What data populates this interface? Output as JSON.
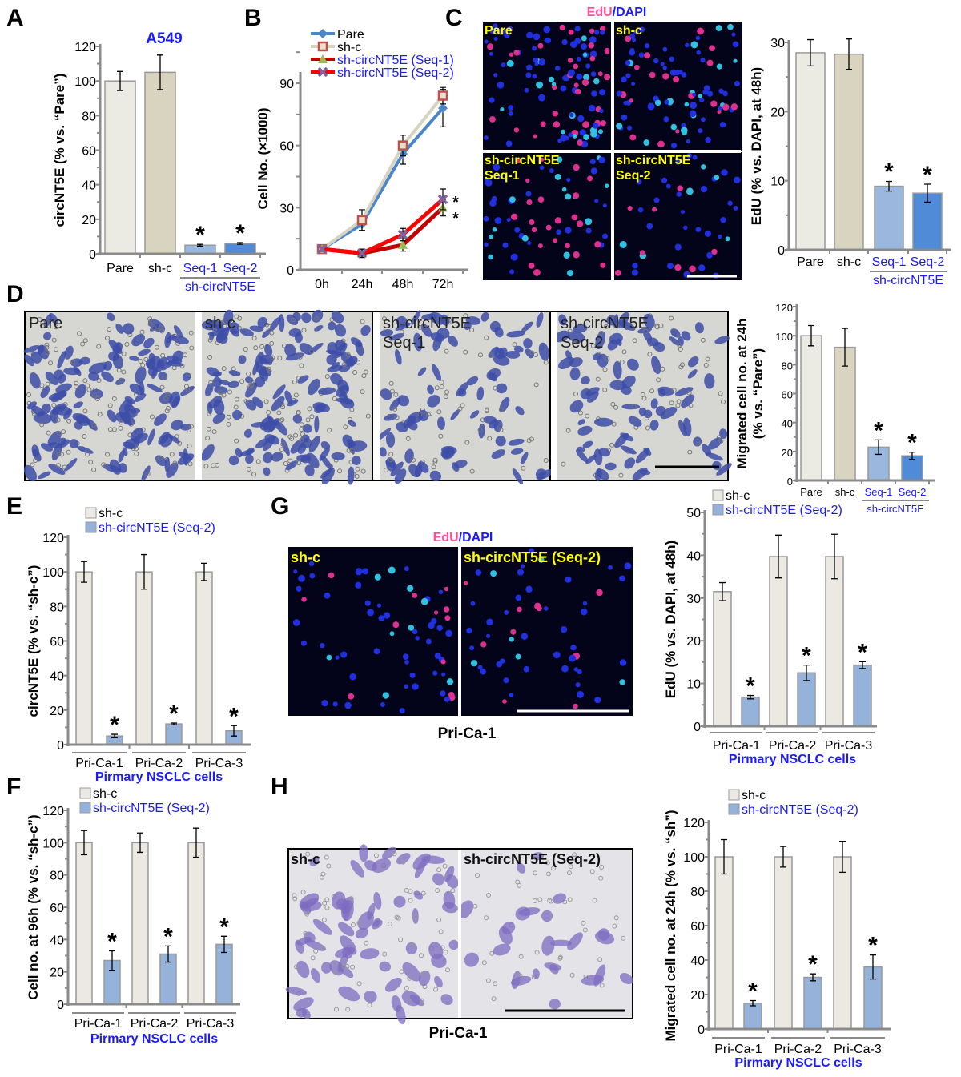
{
  "panel_letters": [
    "A",
    "B",
    "C",
    "D",
    "E",
    "F",
    "G",
    "H"
  ],
  "colors": {
    "pare": "#ecebe3",
    "shc_A": "#d9d4bf",
    "seq1": "#9ab7de",
    "seq2": "#4f8bd6",
    "shc": "#ebe9e1",
    "seq2_primary": "#95b3da",
    "label_blue": "#1a1aff",
    "edu_pink": "#ff4f9a",
    "dapi_blue": "#1a1aff",
    "yellow": "#ffff00"
  },
  "images": {
    "C": {
      "title_edu": "EdU",
      "title_sep": "/",
      "title_dapi": "DAPI",
      "labels": [
        "Pare",
        "sh-c",
        "sh-circNT5E\nSeq-1",
        "sh-circNT5E\nSeq-2"
      ],
      "has_scale_bar": true
    },
    "D": {
      "labels": [
        "Pare",
        "sh-c",
        "sh-circNT5E\nSeq-1",
        "sh-circNT5E\nSeq-2"
      ],
      "has_scale_bar": true
    },
    "G": {
      "title_edu": "EdU",
      "title_sep": "/",
      "title_dapi": "DAPI",
      "labels": [
        "sh-c",
        "sh-circNT5E (Seq-2)"
      ],
      "caption": "Pri-Ca-1",
      "has_scale_bar": true
    },
    "H": {
      "labels": [
        "sh-c",
        "sh-circNT5E (Seq-2)"
      ],
      "caption": "Pri-Ca-1",
      "has_scale_bar": true
    }
  },
  "chart_data": [
    {
      "id": "A",
      "type": "bar",
      "title": "A549",
      "ylabel": "circNT5E (% vs. “Pare”)",
      "ylim": [
        0,
        120
      ],
      "ytick_step": 20,
      "categories": [
        "Pare",
        "sh-c",
        "Seq-1",
        "Seq-2"
      ],
      "category_colors": [
        "#000",
        "#000",
        "#1a1aff",
        "#1a1aff"
      ],
      "group_label": "sh-circNT5E",
      "group_span": [
        "Seq-1",
        "Seq-2"
      ],
      "series": [
        {
          "values": [
            100,
            105,
            5,
            6
          ],
          "errors": [
            5.5,
            10,
            0.5,
            0.5
          ],
          "colors": [
            "#ecebe3",
            "#d9d4bf",
            "#9ab7de",
            "#4f8bd6"
          ]
        }
      ],
      "significant": [
        false,
        false,
        true,
        true
      ]
    },
    {
      "id": "B",
      "type": "line",
      "ylabel": "Cell No. (×1000)",
      "ylim": [
        0,
        90
      ],
      "yticks": [
        0,
        30,
        60,
        90
      ],
      "x": [
        "0h",
        "24h",
        "48h",
        "72h"
      ],
      "series": [
        {
          "name": "Pare",
          "values": [
            10,
            22,
            56,
            78
          ],
          "errors": [
            1,
            3,
            5,
            9
          ],
          "line_color": "#4a86c8",
          "marker": "diamond",
          "marker_color": "#4a86c8"
        },
        {
          "name": "sh-c",
          "values": [
            10,
            24,
            60,
            84
          ],
          "errors": [
            1,
            5,
            5,
            4
          ],
          "line_color": "#d8d3c0",
          "marker": "square",
          "marker_color": "#c0504d"
        },
        {
          "name": "sh-circNT5E (Seq-1)",
          "values": [
            10,
            8,
            12,
            30
          ],
          "errors": [
            1,
            2,
            3,
            4
          ],
          "line_color": "#c00000",
          "marker": "triangle",
          "marker_color": "#9bbb59"
        },
        {
          "name": "sh-circNT5E (Seq-2)",
          "values": [
            10,
            8,
            17,
            34
          ],
          "errors": [
            1,
            2,
            3,
            5
          ],
          "line_color": "#ff0000",
          "marker": "x",
          "marker_color": "#8064a2"
        }
      ],
      "legend_text_colors": [
        "#000",
        "#000",
        "#1a1aff",
        "#1a1aff"
      ],
      "significant_at_last": [
        false,
        false,
        true,
        true
      ]
    },
    {
      "id": "C",
      "type": "bar",
      "ylabel": "EdU (% vs. DAPI, at 48h)",
      "ylim": [
        0,
        30
      ],
      "ytick_step": 10,
      "categories": [
        "Pare",
        "sh-c",
        "Seq-1",
        "Seq-2"
      ],
      "category_colors": [
        "#000",
        "#000",
        "#1a1aff",
        "#1a1aff"
      ],
      "group_label": "sh-circNT5E",
      "group_span": [
        "Seq-1",
        "Seq-2"
      ],
      "series": [
        {
          "values": [
            28.5,
            28.3,
            9.2,
            8.2
          ],
          "errors": [
            1.9,
            2.2,
            0.7,
            1.3
          ],
          "colors": [
            "#ecebe3",
            "#d9d4bf",
            "#9ab7de",
            "#4f8bd6"
          ]
        }
      ],
      "significant": [
        false,
        false,
        true,
        true
      ]
    },
    {
      "id": "D",
      "type": "bar",
      "ylabel": "Migrated cell no. at 24h\n(% vs. “Pare”)",
      "ylim": [
        0,
        120
      ],
      "ytick_step": 20,
      "categories": [
        "Pare",
        "sh-c",
        "Seq-1",
        "Seq-2"
      ],
      "category_colors": [
        "#000",
        "#000",
        "#1a1aff",
        "#1a1aff"
      ],
      "group_label": "sh-circNT5E",
      "group_span": [
        "Seq-1",
        "Seq-2"
      ],
      "series": [
        {
          "values": [
            100,
            92,
            23,
            17
          ],
          "errors": [
            7,
            13,
            5,
            2.5
          ],
          "colors": [
            "#ecebe3",
            "#d9d4bf",
            "#9ab7de",
            "#4f8bd6"
          ]
        }
      ],
      "significant": [
        false,
        false,
        true,
        true
      ]
    },
    {
      "id": "E",
      "type": "bar",
      "ylabel": "circNT5E (% vs. “sh-c”)",
      "ylim": [
        0,
        120
      ],
      "ytick_step": 20,
      "categories": [
        "Pri-Ca-1",
        "Pri-Ca-2",
        "Pri-Ca-3"
      ],
      "group_label": "Pirmary NSCLC cells",
      "series": [
        {
          "name": "sh-c",
          "values": [
            100,
            100,
            100
          ],
          "errors": [
            6,
            10,
            5
          ],
          "color": "#ebe9e1"
        },
        {
          "name": "sh-circNT5E (Seq-2)",
          "values": [
            5,
            12,
            8
          ],
          "errors": [
            1,
            0.5,
            3
          ],
          "color": "#95b3da",
          "significant": [
            true,
            true,
            true
          ]
        }
      ]
    },
    {
      "id": "F",
      "type": "bar",
      "ylabel": "Cell no. at 96h (% vs. “sh-c”)",
      "ylim": [
        0,
        120
      ],
      "ytick_step": 20,
      "categories": [
        "Pri-Ca-1",
        "Pri-Ca-2",
        "Pri-Ca-3"
      ],
      "group_label": "Pirmary NSCLC cells",
      "series": [
        {
          "name": "sh-c",
          "values": [
            100,
            100,
            100
          ],
          "errors": [
            7.5,
            6,
            9
          ],
          "color": "#ebe9e1"
        },
        {
          "name": "sh-circNT5E (Seq-2)",
          "values": [
            27,
            31,
            37
          ],
          "errors": [
            6,
            5,
            5
          ],
          "color": "#95b3da",
          "significant": [
            true,
            true,
            true
          ]
        }
      ]
    },
    {
      "id": "G",
      "type": "bar",
      "ylabel": "EdU (% vs. DAPI, at 48h)",
      "ylim": [
        0,
        50
      ],
      "ytick_step": 10,
      "categories": [
        "Pri-Ca-1",
        "Pri-Ca-2",
        "Pri-Ca-3"
      ],
      "group_label": "Pirmary NSCLC cells",
      "series": [
        {
          "name": "sh-c",
          "values": [
            31.5,
            39.7,
            39.7
          ],
          "errors": [
            2.1,
            5,
            5.2
          ],
          "color": "#ebe9e1"
        },
        {
          "name": "sh-circNT5E (Seq-2)",
          "values": [
            6.8,
            12.5,
            14.3
          ],
          "errors": [
            0.4,
            1.8,
            0.8
          ],
          "color": "#95b3da",
          "significant": [
            true,
            true,
            true
          ]
        }
      ]
    },
    {
      "id": "H",
      "type": "bar",
      "ylabel": "Migrated cell no. at 24h (% vs. “sh”)",
      "ylim": [
        0,
        120
      ],
      "ytick_step": 20,
      "categories": [
        "Pri-Ca-1",
        "Pri-Ca-2",
        "Pri-Ca-3"
      ],
      "group_label": "Pirmary NSCLC cells",
      "series": [
        {
          "name": "sh-c",
          "values": [
            100,
            100,
            100
          ],
          "errors": [
            10,
            6,
            9
          ],
          "color": "#ebe9e1"
        },
        {
          "name": "sh-circNT5E (Seq-2)",
          "values": [
            15,
            30,
            36
          ],
          "errors": [
            1.5,
            2,
            7
          ],
          "color": "#95b3da",
          "significant": [
            true,
            true,
            true
          ]
        }
      ]
    }
  ]
}
